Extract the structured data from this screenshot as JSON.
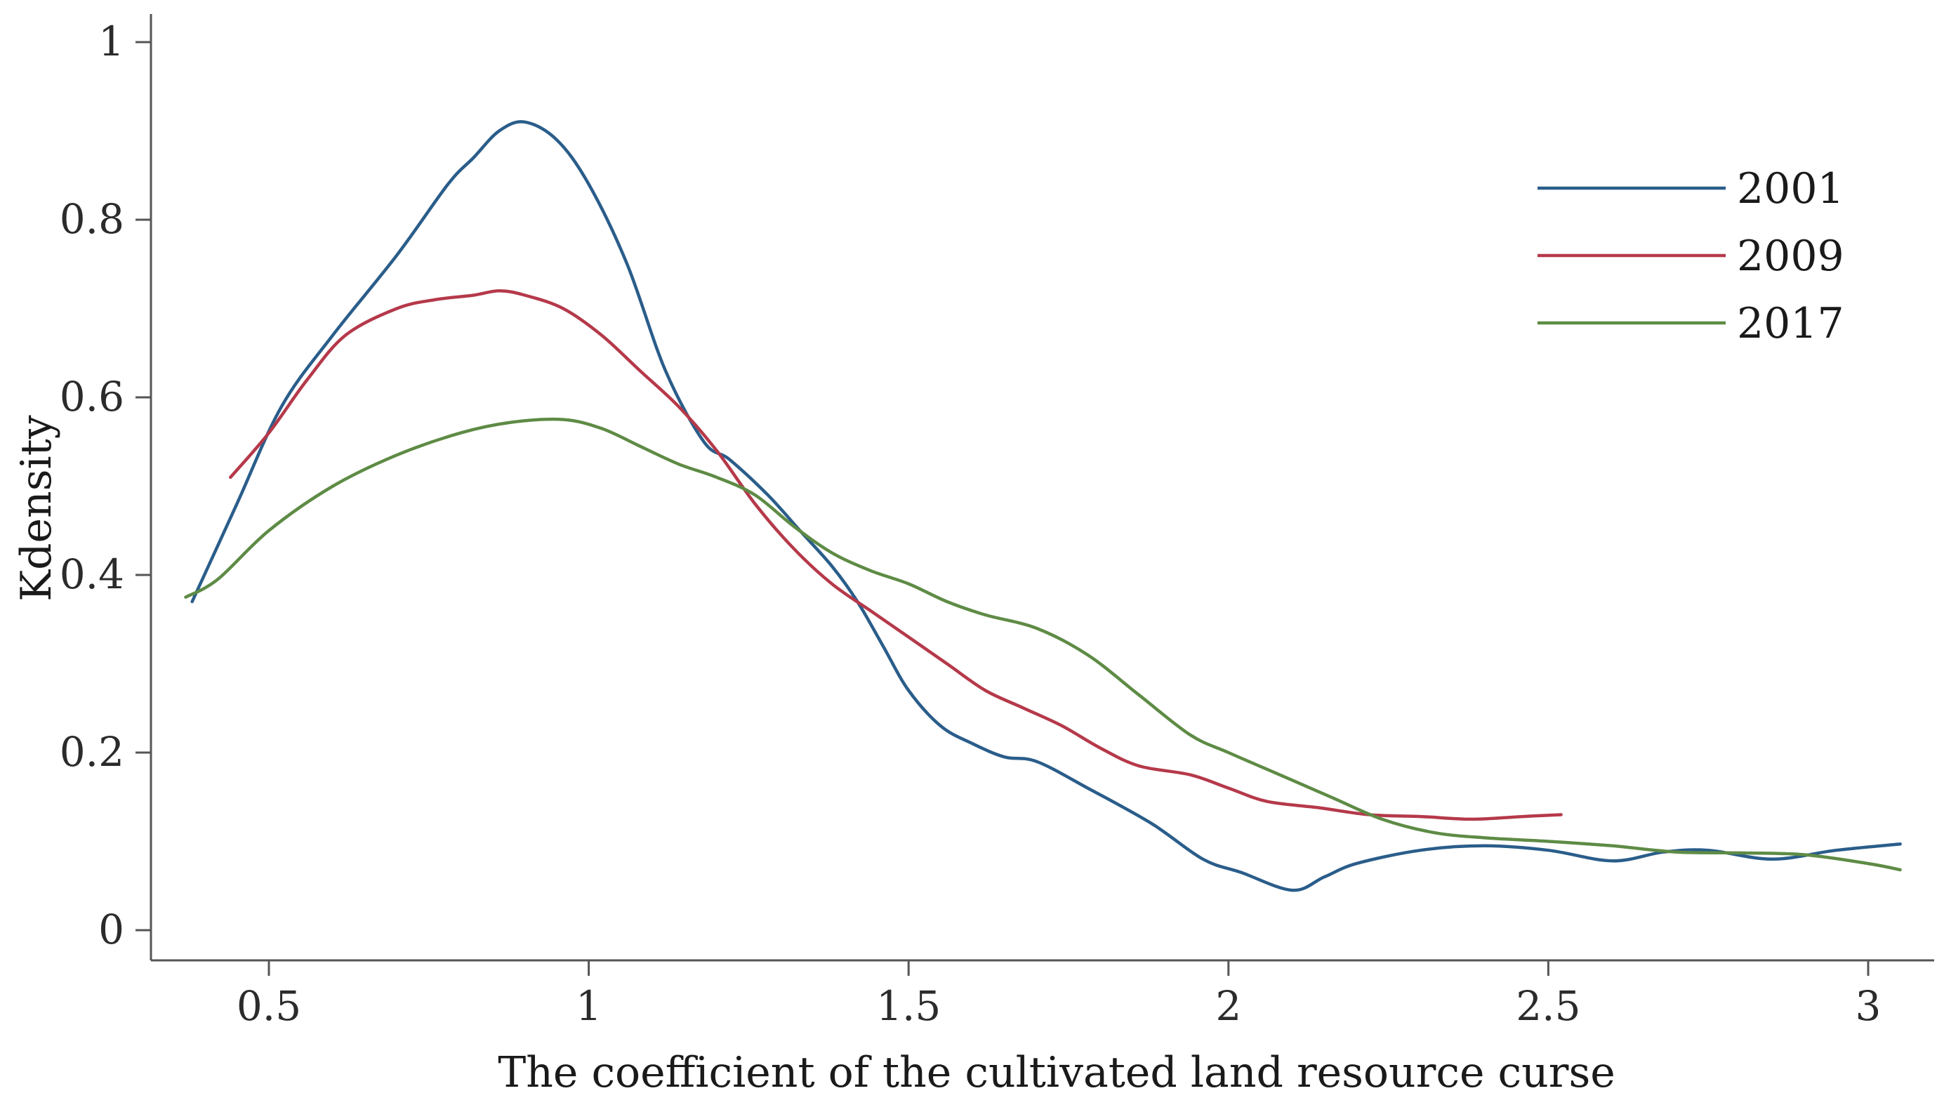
{
  "chart_data": {
    "type": "line",
    "title": "",
    "xlabel": "The coefficient of the cultivated land resource curse",
    "ylabel": "Kdensity",
    "xlim": [
      0.33,
      3.1
    ],
    "ylim": [
      -0.03,
      1.03
    ],
    "x_ticks": [
      0.5,
      1,
      1.5,
      2,
      2.5,
      3
    ],
    "x_tick_labels": [
      "0.5",
      "1",
      "1.5",
      "2",
      "2.5",
      "3"
    ],
    "y_ticks": [
      0,
      0.2,
      0.4,
      0.6,
      0.8,
      1
    ],
    "y_tick_labels": [
      "0",
      "0.2",
      "0.4",
      "0.6",
      "0.8",
      "1"
    ],
    "grid": false,
    "legend_position": "top-right",
    "series": [
      {
        "name": "2001",
        "color": "#2a5d8a",
        "x": [
          0.38,
          0.45,
          0.52,
          0.6,
          0.7,
          0.78,
          0.82,
          0.86,
          0.9,
          0.95,
          1.0,
          1.06,
          1.12,
          1.18,
          1.22,
          1.28,
          1.33,
          1.38,
          1.42,
          1.46,
          1.5,
          1.55,
          1.6,
          1.65,
          1.7,
          1.78,
          1.88,
          1.96,
          2.02,
          2.1,
          2.15,
          2.2,
          2.3,
          2.4,
          2.5,
          2.6,
          2.68,
          2.75,
          2.85,
          2.95,
          3.05
        ],
        "y": [
          0.37,
          0.48,
          0.59,
          0.67,
          0.76,
          0.84,
          0.87,
          0.9,
          0.91,
          0.89,
          0.84,
          0.75,
          0.63,
          0.55,
          0.53,
          0.49,
          0.45,
          0.41,
          0.37,
          0.32,
          0.27,
          0.23,
          0.21,
          0.195,
          0.19,
          0.16,
          0.12,
          0.08,
          0.065,
          0.045,
          0.06,
          0.075,
          0.09,
          0.095,
          0.09,
          0.078,
          0.088,
          0.09,
          0.08,
          0.09,
          0.097
        ]
      },
      {
        "name": "2009",
        "color": "#b5394a",
        "x": [
          0.44,
          0.5,
          0.56,
          0.62,
          0.7,
          0.76,
          0.82,
          0.86,
          0.9,
          0.96,
          1.02,
          1.08,
          1.14,
          1.2,
          1.26,
          1.32,
          1.38,
          1.44,
          1.5,
          1.56,
          1.62,
          1.68,
          1.74,
          1.8,
          1.86,
          1.94,
          2.0,
          2.06,
          2.14,
          2.22,
          2.3,
          2.38,
          2.46,
          2.52
        ],
        "y": [
          0.51,
          0.56,
          0.62,
          0.67,
          0.7,
          0.71,
          0.715,
          0.72,
          0.715,
          0.7,
          0.67,
          0.63,
          0.59,
          0.54,
          0.48,
          0.43,
          0.39,
          0.36,
          0.33,
          0.3,
          0.27,
          0.25,
          0.23,
          0.205,
          0.185,
          0.175,
          0.16,
          0.145,
          0.138,
          0.13,
          0.128,
          0.125,
          0.128,
          0.13
        ]
      },
      {
        "name": "2017",
        "color": "#5e8b45",
        "x": [
          0.37,
          0.42,
          0.5,
          0.6,
          0.7,
          0.8,
          0.88,
          0.96,
          1.02,
          1.08,
          1.14,
          1.2,
          1.26,
          1.32,
          1.38,
          1.44,
          1.5,
          1.56,
          1.62,
          1.7,
          1.78,
          1.86,
          1.94,
          2.0,
          2.08,
          2.16,
          2.24,
          2.32,
          2.4,
          2.5,
          2.6,
          2.7,
          2.8,
          2.9,
          3.0,
          3.05
        ],
        "y": [
          0.375,
          0.395,
          0.45,
          0.5,
          0.535,
          0.56,
          0.572,
          0.575,
          0.565,
          0.545,
          0.525,
          0.51,
          0.49,
          0.455,
          0.425,
          0.405,
          0.39,
          0.37,
          0.355,
          0.34,
          0.31,
          0.265,
          0.22,
          0.2,
          0.175,
          0.15,
          0.125,
          0.11,
          0.104,
          0.1,
          0.095,
          0.088,
          0.087,
          0.085,
          0.075,
          0.068
        ]
      }
    ]
  }
}
